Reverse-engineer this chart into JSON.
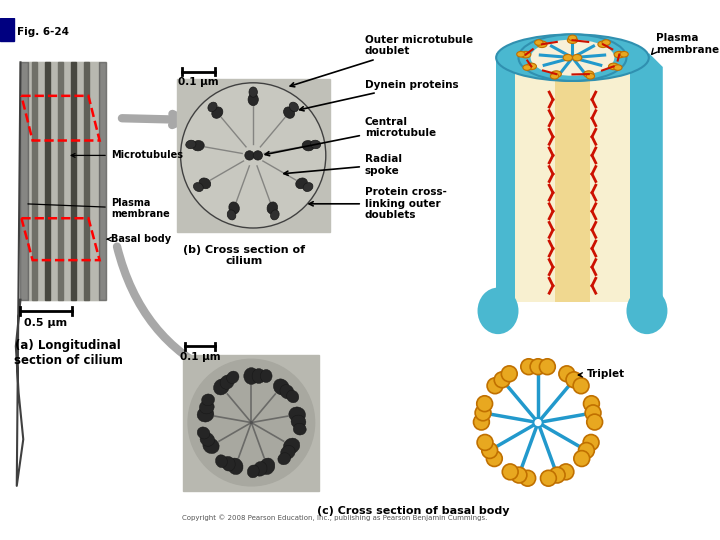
{
  "title": "Fig. 6-24",
  "background_color": "#ffffff",
  "labels": {
    "outer_microtubule": "Outer microtubule\ndoublet",
    "dynein": "Dynein proteins",
    "central_micro": "Central\nmicrotubule",
    "radial_spoke": "Radial\nspoke",
    "protein_cross": "Protein cross-\nlinking outer\ndoublets",
    "plasma_membrane_top": "Plasma\nmembrane",
    "microtubules": "Microtubules",
    "plasma_membrane_left": "Plasma\nmembrane",
    "basal_body": "Basal body",
    "long_section": "(a) Longitudinal\nsection of cilium",
    "cross_section_b": "(b) Cross section of\ncilium",
    "cross_section_c": "(c) Cross section of basal body",
    "triplet": "Triplet",
    "scale_05": "0.5 µm",
    "scale_01_top": "0.1 µm",
    "scale_01_bot": "0.1 µm"
  },
  "copyright": "Copyright © 2008 Pearson Education, Inc., publishing as Pearson Benjamin Cummings.",
  "colors": {
    "cyan_membrane": "#4ab8d0",
    "cyan_dark": "#3090b0",
    "cream_inner": "#f0d890",
    "orange_doublet": "#e8a820",
    "orange_edge": "#c07000",
    "red_crosslink": "#cc1100",
    "blue_spoke": "#2299cc",
    "spoke_inner": "#50b8e0",
    "white": "#ffffff",
    "em_bg": "#c8c8c8",
    "em_dark": "#303030",
    "em_med": "#505050"
  }
}
